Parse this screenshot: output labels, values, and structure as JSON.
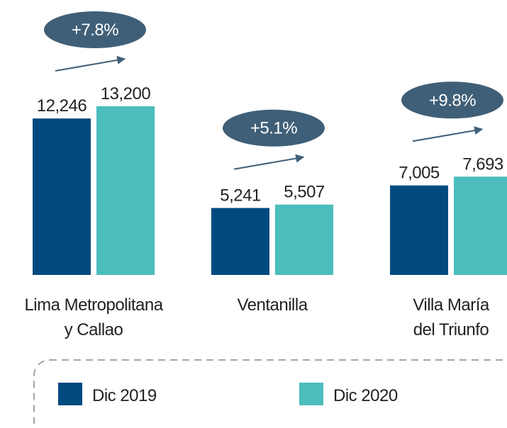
{
  "chart_data": {
    "type": "bar",
    "categories": [
      "Lima Metropolitana\ny Callao",
      "Ventanilla",
      "Villa María\ndel Triunfo"
    ],
    "series": [
      {
        "name": "Dic 2019",
        "color": "#004a7f",
        "values": [
          12246,
          5241,
          7005
        ],
        "value_labels": [
          "12,246",
          "5,241",
          "7,005"
        ]
      },
      {
        "name": "Dic 2020",
        "color": "#4bbdbd",
        "values": [
          13200,
          5507,
          7693
        ],
        "value_labels": [
          "13,200",
          "5,507",
          "7,693"
        ]
      }
    ],
    "annotations": [
      "+7.8%",
      "+5.1%",
      "+9.8%"
    ]
  }
}
